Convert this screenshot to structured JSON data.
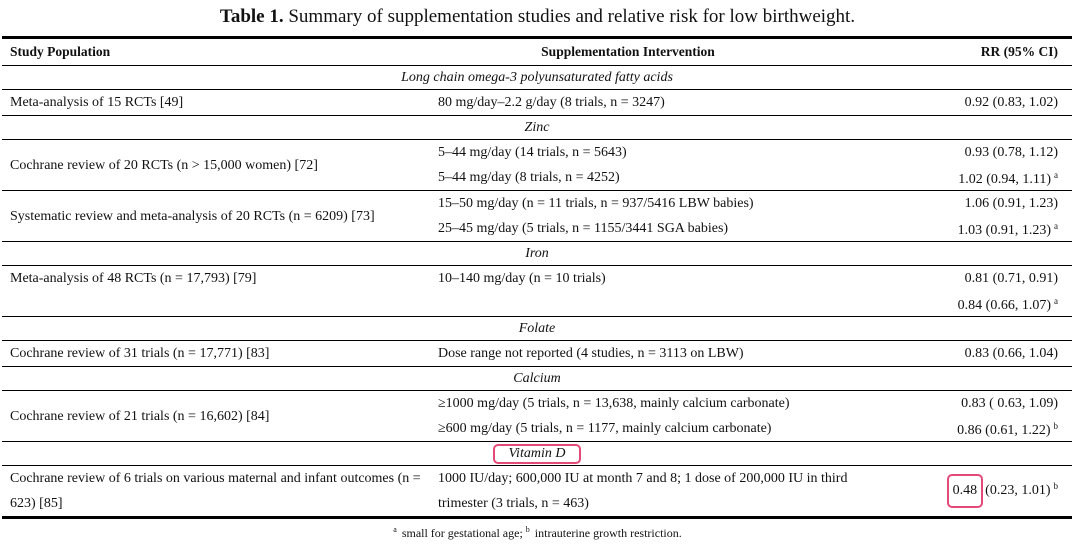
{
  "title": {
    "label": "Table 1.",
    "text": "Summary of supplementation studies and relative risk for low birthweight."
  },
  "headers": [
    "Study Population",
    "Supplementation Intervention",
    "RR (95% CI)"
  ],
  "highlight_color": "#e44a78",
  "sections": [
    {
      "heading": "Long chain omega-3 polyunsaturated fatty acids",
      "groups": [
        {
          "study": "Meta-analysis of 15 RCTs [49]",
          "span": true,
          "rows": [
            {
              "intervention": "80 mg/day–2.2 g/day (8 trials, n = 3247)",
              "rr": "0.92 (0.83, 1.02)",
              "note": ""
            }
          ]
        }
      ]
    },
    {
      "heading": "Zinc",
      "groups": [
        {
          "study": "Cochrane review of 20 RCTs (n > 15,000 women) [72]",
          "span": true,
          "rows": [
            {
              "intervention": "5–44 mg/day (14 trials, n = 5643)",
              "rr": "0.93 (0.78, 1.12)",
              "note": ""
            },
            {
              "intervention": "5–44 mg/day (8 trials, n = 4252)",
              "rr": "1.02 (0.94, 1.11)",
              "note": "a"
            }
          ]
        },
        {
          "study": "Systematic review and meta-analysis of 20 RCTs (n = 6209) [73]",
          "span": true,
          "rows": [
            {
              "intervention": "15–50 mg/day (n = 11 trials, n = 937/5416 LBW babies)",
              "rr": "1.06 (0.91, 1.23)",
              "note": ""
            },
            {
              "intervention": "25–45 mg/day (5 trials, n = 1155/3441 SGA babies)",
              "rr": "1.03 (0.91, 1.23)",
              "note": "a"
            }
          ]
        }
      ]
    },
    {
      "heading": "Iron",
      "groups": [
        {
          "study": "Meta-analysis of 48 RCTs (n = 17,793) [79]",
          "span": false,
          "rows": [
            {
              "intervention": "10–140 mg/day (n = 10 trials)",
              "rr": "0.81 (0.71, 0.91)",
              "note": ""
            },
            {
              "intervention": "",
              "rr": "0.84 (0.66, 1.07)",
              "note": "a"
            }
          ]
        }
      ]
    },
    {
      "heading": "Folate",
      "groups": [
        {
          "study": "Cochrane review of 31 trials (n = 17,771) [83]",
          "span": true,
          "rows": [
            {
              "intervention": "Dose range not reported (4 studies, n = 3113 on LBW)",
              "rr": "0.83 (0.66, 1.04)",
              "note": ""
            }
          ]
        }
      ]
    },
    {
      "heading": "Calcium",
      "groups": [
        {
          "study": "Cochrane review of 21 trials (n = 16,602) [84]",
          "span": true,
          "rows": [
            {
              "intervention": "≥1000 mg/day (5 trials, n = 13,638, mainly calcium carbonate)",
              "rr": "0.83 ( 0.63, 1.09)",
              "note": ""
            },
            {
              "intervention": "≥600 mg/day (5 trials, n = 1177, mainly calcium carbonate)",
              "rr": "0.86 (0.61, 1.22)",
              "note": "b"
            }
          ]
        }
      ]
    },
    {
      "heading": "Vitamin D",
      "highlighted": true,
      "groups": [
        {
          "study": "Cochrane review of 6 trials on various maternal and infant outcomes (n = 623) [85]",
          "span": true,
          "wrap": true,
          "rows": [
            {
              "intervention": "1000 IU/day; 600,000 IU at month 7 and 8; 1 dose of 200,000 IU in third trimester (3 trials, n = 463)",
              "rr_highlight": "0.48",
              "rr": "(0.23, 1.01)",
              "note": "b"
            }
          ]
        }
      ]
    }
  ],
  "footnote": {
    "a_mark": "a",
    "a_text": "small for gestational age;",
    "b_mark": "b",
    "b_text": "intrauterine growth restriction."
  }
}
